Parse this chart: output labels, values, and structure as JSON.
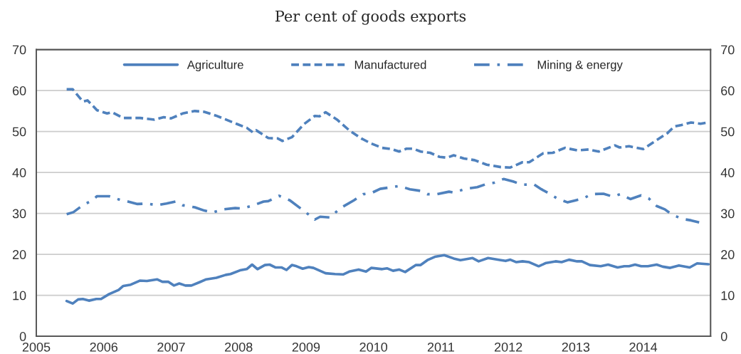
{
  "chart_data": {
    "type": "line",
    "title": "Per cent of goods exports",
    "xlim": [
      2005,
      2015
    ],
    "xticks": [
      2005,
      2006,
      2007,
      2008,
      2009,
      2010,
      2011,
      2012,
      2013,
      2014
    ],
    "ylim": [
      0,
      70
    ],
    "yticks": [
      0,
      10,
      20,
      30,
      40,
      50,
      60,
      70
    ],
    "y2lim": [
      0,
      70
    ],
    "y2ticks": [
      0,
      10,
      20,
      30,
      40,
      50,
      60,
      70
    ],
    "grid": "y",
    "legend": "top",
    "marker": "none",
    "series": [
      {
        "name": "Agriculture",
        "color": "#4f81bd",
        "line_style": "solid",
        "x": [
          2005.45,
          2005.54,
          2005.62,
          2005.69,
          2005.78,
          2005.89,
          2005.96,
          2006.08,
          2006.22,
          2006.29,
          2006.4,
          2006.54,
          2006.64,
          2006.79,
          2006.87,
          2006.96,
          2007.04,
          2007.12,
          2007.21,
          2007.3,
          2007.42,
          2007.52,
          2007.67,
          2007.81,
          2007.88,
          2008.02,
          2008.12,
          2008.2,
          2008.28,
          2008.39,
          2008.46,
          2008.55,
          2008.64,
          2008.71,
          2008.79,
          2008.86,
          2008.95,
          2009.04,
          2009.11,
          2009.29,
          2009.43,
          2009.55,
          2009.64,
          2009.78,
          2009.89,
          2009.97,
          2010.13,
          2010.2,
          2010.29,
          2010.38,
          2010.47,
          2010.63,
          2010.7,
          2010.8,
          2010.91,
          2011.05,
          2011.19,
          2011.29,
          2011.47,
          2011.56,
          2011.7,
          2011.89,
          2011.96,
          2012.03,
          2012.12,
          2012.21,
          2012.31,
          2012.45,
          2012.56,
          2012.7,
          2012.79,
          2012.9,
          2013.02,
          2013.09,
          2013.21,
          2013.37,
          2013.48,
          2013.62,
          2013.72,
          2013.79,
          2013.88,
          2013.97,
          2014.07,
          2014.2,
          2014.29,
          2014.4,
          2014.53,
          2014.69,
          2014.8,
          2014.97
        ],
        "values": [
          8.6,
          8.0,
          9.0,
          9.1,
          8.7,
          9.1,
          9.1,
          10.3,
          11.3,
          12.3,
          12.6,
          13.6,
          13.5,
          13.9,
          13.3,
          13.3,
          12.4,
          12.9,
          12.4,
          12.4,
          13.2,
          13.9,
          14.3,
          15.0,
          15.2,
          16.1,
          16.4,
          17.5,
          16.4,
          17.4,
          17.5,
          16.8,
          16.8,
          16.2,
          17.4,
          17.1,
          16.5,
          16.9,
          16.7,
          15.4,
          15.2,
          15.1,
          15.8,
          16.3,
          15.8,
          16.7,
          16.4,
          16.6,
          16.0,
          16.3,
          15.7,
          17.4,
          17.4,
          18.6,
          19.4,
          19.8,
          19.0,
          18.6,
          19.1,
          18.3,
          19.1,
          18.6,
          18.4,
          18.7,
          18.1,
          18.3,
          18.1,
          17.1,
          17.9,
          18.3,
          18.1,
          18.7,
          18.3,
          18.3,
          17.4,
          17.1,
          17.5,
          16.8,
          17.1,
          17.1,
          17.5,
          17.1,
          17.1,
          17.5,
          17.0,
          16.7,
          17.3,
          16.8,
          17.8,
          17.6
        ]
      },
      {
        "name": "Manufactured",
        "color": "#4f81bd",
        "line_style": "dashed",
        "x": [
          2005.45,
          2005.54,
          2005.69,
          2005.76,
          2005.9,
          2006.05,
          2006.12,
          2006.29,
          2006.54,
          2006.75,
          2006.89,
          2007.0,
          2007.17,
          2007.35,
          2007.49,
          2007.66,
          2007.8,
          2007.98,
          2008.12,
          2008.21,
          2008.26,
          2008.44,
          2008.58,
          2008.65,
          2008.79,
          2008.97,
          2009.13,
          2009.2,
          2009.29,
          2009.46,
          2009.64,
          2009.82,
          2009.96,
          2010.13,
          2010.27,
          2010.38,
          2010.49,
          2010.59,
          2010.7,
          2010.84,
          2010.98,
          2011.09,
          2011.19,
          2011.34,
          2011.5,
          2011.68,
          2011.89,
          2012.03,
          2012.21,
          2012.31,
          2012.52,
          2012.66,
          2012.84,
          2013.02,
          2013.19,
          2013.34,
          2013.58,
          2013.65,
          2013.79,
          2014.0,
          2014.18,
          2014.36,
          2014.46,
          2014.57,
          2014.71,
          2014.85,
          2014.97
        ],
        "values": [
          60.3,
          60.3,
          57.3,
          57.6,
          55.2,
          54.4,
          54.7,
          53.3,
          53.3,
          52.9,
          53.5,
          53.2,
          54.4,
          55.0,
          54.8,
          53.9,
          53.0,
          51.8,
          50.9,
          49.8,
          50.3,
          48.4,
          48.3,
          47.7,
          48.6,
          51.8,
          53.8,
          53.7,
          54.7,
          52.9,
          50.3,
          48.3,
          47.1,
          46.0,
          45.7,
          45.1,
          45.8,
          45.8,
          45.1,
          44.8,
          43.8,
          43.6,
          44.2,
          43.4,
          43.0,
          41.9,
          41.3,
          41.2,
          42.5,
          42.5,
          44.7,
          44.8,
          46.0,
          45.4,
          45.6,
          45.1,
          46.6,
          46.1,
          46.4,
          45.7,
          47.7,
          49.6,
          51.2,
          51.6,
          52.2,
          51.9,
          52.2
        ]
      },
      {
        "name": "Mining & energy",
        "color": "#4f81bd",
        "line_style": "dashdot",
        "x": [
          2005.45,
          2005.55,
          2005.69,
          2005.83,
          2005.9,
          2006.08,
          2006.26,
          2006.33,
          2006.5,
          2006.64,
          2006.79,
          2006.93,
          2007.07,
          2007.17,
          2007.35,
          2007.49,
          2007.61,
          2007.77,
          2007.95,
          2008.05,
          2008.19,
          2008.37,
          2008.44,
          2008.6,
          2008.76,
          2008.97,
          2009.13,
          2009.21,
          2009.36,
          2009.5,
          2009.71,
          2009.85,
          2009.96,
          2010.1,
          2010.27,
          2010.38,
          2010.54,
          2010.7,
          2010.8,
          2010.94,
          2011.12,
          2011.19,
          2011.37,
          2011.54,
          2011.68,
          2011.79,
          2011.93,
          2012.07,
          2012.21,
          2012.38,
          2012.49,
          2012.6,
          2012.74,
          2012.88,
          2013.0,
          2013.12,
          2013.23,
          2013.41,
          2013.55,
          2013.66,
          2013.81,
          2013.97,
          2014.08,
          2014.2,
          2014.32,
          2014.43,
          2014.57,
          2014.71,
          2014.83
        ],
        "values": [
          29.8,
          30.3,
          32.0,
          33.2,
          34.2,
          34.2,
          33.2,
          33.0,
          32.3,
          32.4,
          32.0,
          32.4,
          32.9,
          32.0,
          31.5,
          30.7,
          30.2,
          31.0,
          31.3,
          31.2,
          31.8,
          32.9,
          33.0,
          34.3,
          33.2,
          30.6,
          28.5,
          29.2,
          29.0,
          31.2,
          33.2,
          34.7,
          34.9,
          36.0,
          36.4,
          36.7,
          35.9,
          35.5,
          34.7,
          34.7,
          35.3,
          35.1,
          36.0,
          36.4,
          37.2,
          37.5,
          38.4,
          37.8,
          37.0,
          37.1,
          35.9,
          34.9,
          33.5,
          32.7,
          33.2,
          33.7,
          34.7,
          34.8,
          34.1,
          34.7,
          33.5,
          34.4,
          33.7,
          31.8,
          31.0,
          29.7,
          28.7,
          28.3,
          27.8
        ]
      }
    ]
  }
}
